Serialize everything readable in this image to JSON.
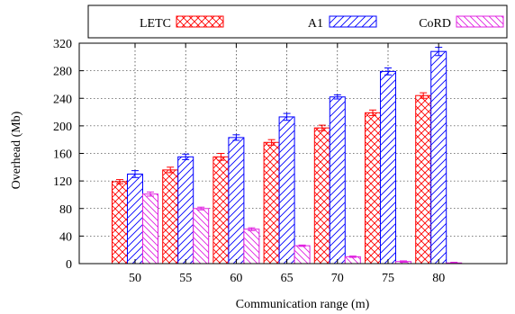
{
  "chart_data": {
    "type": "bar",
    "title": "",
    "xlabel": "Communication range (m)",
    "ylabel": "Overhead (Mb)",
    "categories": [
      "50",
      "55",
      "60",
      "65",
      "70",
      "75",
      "80"
    ],
    "ylim": [
      0,
      320
    ],
    "yticks": [
      "0",
      "40",
      "80",
      "120",
      "160",
      "200",
      "240",
      "280",
      "320"
    ],
    "grid": true,
    "legend_position": "top",
    "series": [
      {
        "name": "LETC",
        "color": "#ff0000",
        "pattern": "crosshatch",
        "values": [
          119,
          136,
          155,
          176,
          197,
          219,
          244
        ],
        "errors": [
          3,
          4,
          5,
          4,
          4,
          4,
          4
        ]
      },
      {
        "name": "A1",
        "color": "#0000ff",
        "pattern": "diagonal",
        "values": [
          130,
          155,
          183,
          213,
          242,
          279,
          308
        ],
        "errors": [
          5,
          4,
          4,
          5,
          3,
          5,
          6
        ]
      },
      {
        "name": "CoRD",
        "color": "#e020e0",
        "pattern": "back-diagonal",
        "values": [
          101,
          80,
          50,
          26,
          10,
          3,
          1
        ],
        "errors": [
          3,
          2,
          2,
          1,
          1,
          1,
          1
        ]
      }
    ]
  }
}
